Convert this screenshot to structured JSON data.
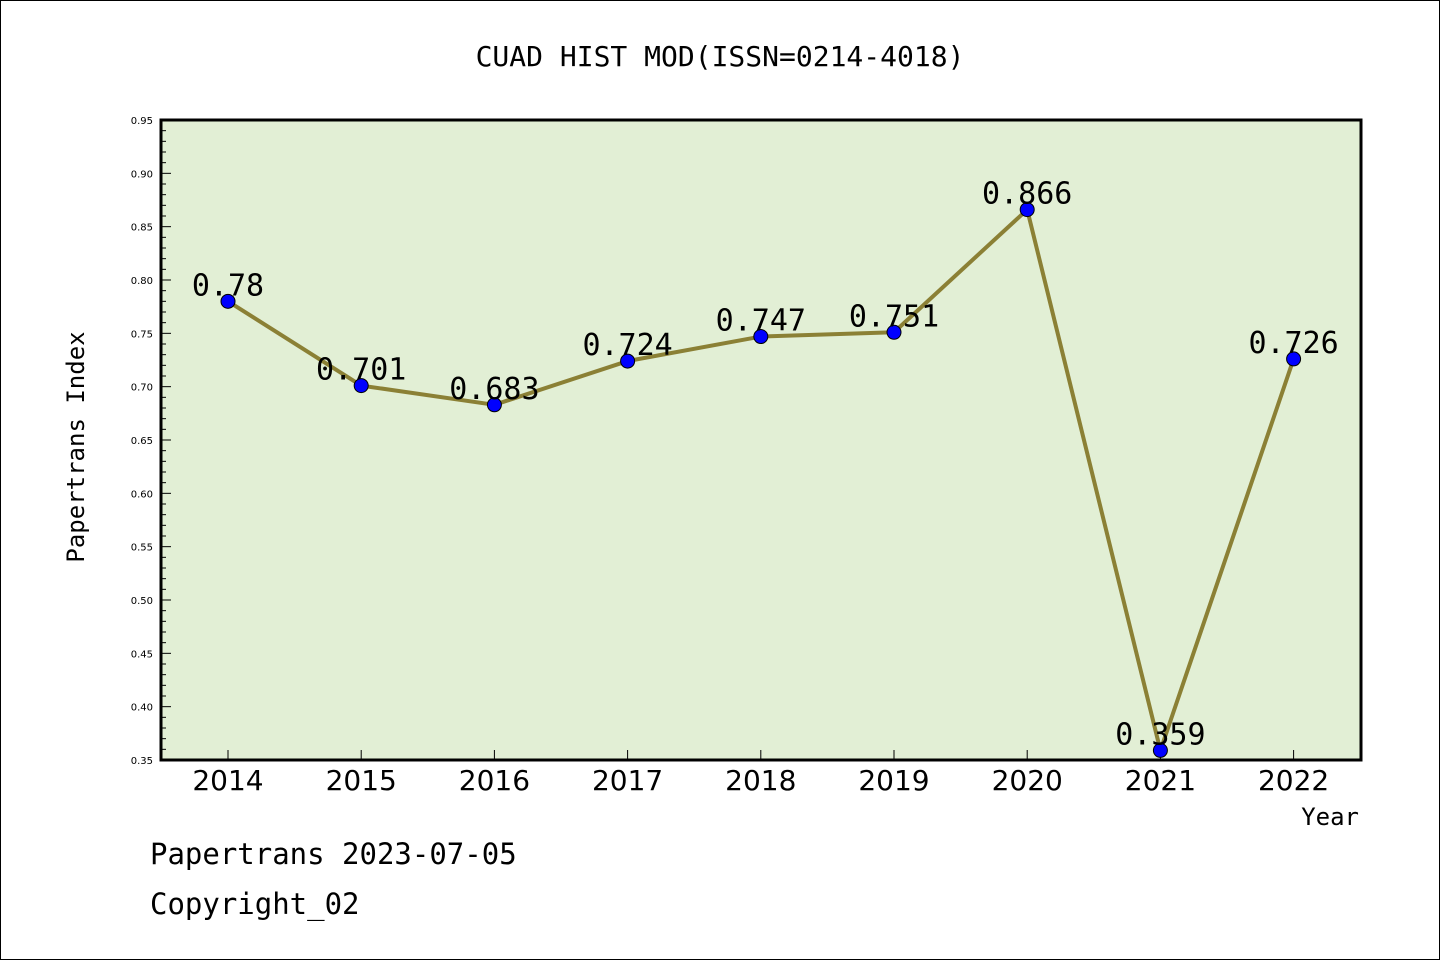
{
  "chart_data": {
    "type": "line",
    "title": "CUAD HIST MOD(ISSN=0214-4018)",
    "xlabel": "Year",
    "ylabel": "Papertrans Index",
    "categories": [
      "2014",
      "2015",
      "2016",
      "2017",
      "2018",
      "2019",
      "2020",
      "2021",
      "2022"
    ],
    "values": [
      0.78,
      0.701,
      0.683,
      0.724,
      0.747,
      0.751,
      0.866,
      0.359,
      0.726
    ],
    "data_labels": [
      "0.78",
      "0.701",
      "0.683",
      "0.724",
      "0.747",
      "0.751",
      "0.866",
      "0.359",
      "0.726"
    ],
    "ylim": [
      0.35,
      0.95
    ],
    "yticks": [
      "0.35",
      "0.40",
      "0.45",
      "0.50",
      "0.55",
      "0.60",
      "0.65",
      "0.70",
      "0.75",
      "0.80",
      "0.85",
      "0.90",
      "0.95"
    ],
    "grid": false,
    "legend": "none",
    "colors": {
      "plot_background": "#e2efd5",
      "line": "#8b8035",
      "marker": "#0000ff"
    }
  },
  "footer": {
    "line1": "Papertrans 2023-07-05",
    "line2": "Copyright_02"
  }
}
